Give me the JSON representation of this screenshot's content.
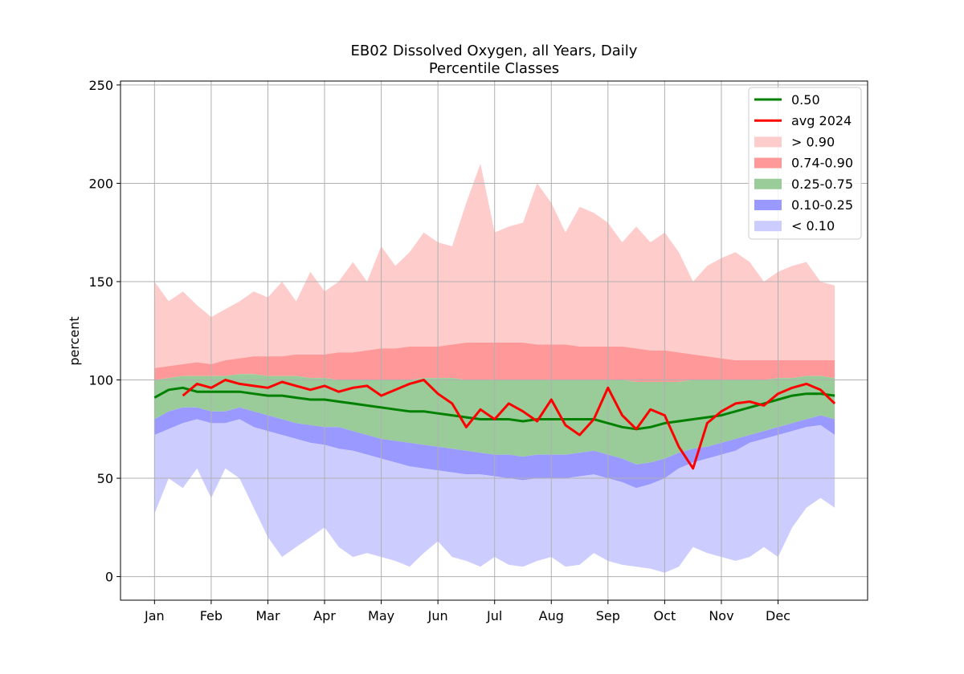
{
  "chart_data": {
    "type": "area",
    "title": "EB02 Dissolved Oxygen, all Years, Daily",
    "subtitle": "Percentile Classes",
    "ylabel": "percent",
    "xlabel": "",
    "ylim": [
      -12,
      252
    ],
    "xlim": [
      -60,
      1258
    ],
    "grid": true,
    "legend_position": "top-right",
    "x_ticks": [
      {
        "label": "Jan",
        "day": 0
      },
      {
        "label": "Feb",
        "day": 100
      },
      {
        "label": "Mar",
        "day": 200
      },
      {
        "label": "Apr",
        "day": 300
      },
      {
        "label": "May",
        "day": 400
      },
      {
        "label": "Jun",
        "day": 500
      },
      {
        "label": "Jul",
        "day": 600
      },
      {
        "label": "Aug",
        "day": 700
      },
      {
        "label": "Sep",
        "day": 800
      },
      {
        "label": "Oct",
        "day": 900
      },
      {
        "label": "Nov",
        "day": 1000
      },
      {
        "label": "Dec",
        "day": 1100
      }
    ],
    "y_ticks": [
      0,
      50,
      100,
      150,
      200,
      250
    ],
    "x": [
      0,
      25,
      50,
      75,
      100,
      125,
      150,
      175,
      200,
      225,
      250,
      275,
      300,
      325,
      350,
      375,
      400,
      425,
      450,
      475,
      500,
      525,
      550,
      575,
      600,
      625,
      650,
      675,
      700,
      725,
      750,
      775,
      800,
      825,
      850,
      875,
      900,
      925,
      950,
      975,
      1000,
      1025,
      1050,
      1075,
      1100,
      1125,
      1150,
      1175,
      1200
    ],
    "bands": {
      "p00": [
        32,
        50,
        45,
        55,
        40,
        55,
        50,
        35,
        20,
        10,
        15,
        20,
        25,
        15,
        10,
        12,
        10,
        8,
        5,
        12,
        18,
        10,
        8,
        5,
        10,
        6,
        5,
        8,
        10,
        5,
        6,
        12,
        8,
        6,
        5,
        4,
        2,
        5,
        15,
        12,
        10,
        8,
        10,
        15,
        10,
        25,
        35,
        40,
        35
      ],
      "p10": [
        72,
        75,
        78,
        80,
        78,
        78,
        80,
        76,
        74,
        72,
        70,
        68,
        67,
        65,
        64,
        62,
        60,
        58,
        56,
        55,
        54,
        53,
        52,
        52,
        51,
        50,
        49,
        50,
        50,
        50,
        51,
        52,
        50,
        48,
        45,
        47,
        50,
        55,
        58,
        60,
        62,
        64,
        68,
        70,
        72,
        74,
        76,
        77,
        72
      ],
      "p25": [
        80,
        84,
        86,
        86,
        84,
        84,
        86,
        84,
        82,
        80,
        78,
        77,
        76,
        76,
        74,
        72,
        70,
        69,
        68,
        67,
        66,
        65,
        64,
        63,
        62,
        62,
        61,
        62,
        62,
        62,
        63,
        64,
        62,
        60,
        57,
        58,
        60,
        63,
        65,
        66,
        68,
        70,
        72,
        74,
        76,
        78,
        80,
        82,
        80
      ],
      "p50": [
        91,
        95,
        96,
        94,
        94,
        94,
        94,
        93,
        92,
        92,
        91,
        90,
        90,
        89,
        88,
        87,
        86,
        85,
        84,
        84,
        83,
        82,
        81,
        80,
        80,
        80,
        79,
        80,
        80,
        80,
        80,
        80,
        78,
        76,
        75,
        76,
        78,
        79,
        80,
        81,
        82,
        84,
        86,
        88,
        90,
        92,
        93,
        93,
        92
      ],
      "p75": [
        100,
        101,
        102,
        102,
        102,
        102,
        103,
        103,
        102,
        102,
        102,
        101,
        101,
        100,
        100,
        100,
        100,
        100,
        100,
        101,
        101,
        101,
        100,
        100,
        100,
        100,
        100,
        100,
        100,
        100,
        100,
        100,
        100,
        100,
        99,
        99,
        99,
        99,
        100,
        100,
        100,
        100,
        100,
        100,
        101,
        101,
        102,
        102,
        101
      ],
      "p90": [
        106,
        107,
        108,
        109,
        108,
        110,
        111,
        112,
        112,
        112,
        113,
        113,
        113,
        114,
        114,
        115,
        116,
        116,
        117,
        117,
        117,
        118,
        119,
        119,
        119,
        119,
        119,
        118,
        118,
        118,
        117,
        117,
        117,
        117,
        116,
        115,
        115,
        114,
        113,
        112,
        111,
        110,
        110,
        110,
        110,
        110,
        110,
        110,
        110
      ],
      "p100": [
        150,
        140,
        145,
        138,
        132,
        136,
        140,
        145,
        142,
        150,
        140,
        155,
        145,
        150,
        160,
        150,
        168,
        158,
        165,
        175,
        170,
        168,
        190,
        210,
        175,
        178,
        180,
        200,
        190,
        175,
        188,
        185,
        180,
        170,
        178,
        170,
        175,
        165,
        150,
        158,
        162,
        165,
        160,
        150,
        155,
        158,
        160,
        150,
        148
      ]
    },
    "series": [
      {
        "name": "0.50",
        "color": "#008000",
        "values": [
          91,
          95,
          96,
          94,
          94,
          94,
          94,
          93,
          92,
          92,
          91,
          90,
          90,
          89,
          88,
          87,
          86,
          85,
          84,
          84,
          83,
          82,
          81,
          80,
          80,
          80,
          79,
          80,
          80,
          80,
          80,
          80,
          78,
          76,
          75,
          76,
          78,
          79,
          80,
          81,
          82,
          84,
          86,
          88,
          90,
          92,
          93,
          93,
          92
        ]
      },
      {
        "name": "avg 2024",
        "color": "#ff0000",
        "values": [
          null,
          null,
          92,
          98,
          96,
          100,
          98,
          97,
          96,
          99,
          97,
          95,
          97,
          94,
          96,
          97,
          92,
          95,
          98,
          100,
          93,
          88,
          76,
          85,
          80,
          88,
          84,
          79,
          90,
          77,
          72,
          80,
          96,
          82,
          75,
          85,
          82,
          66,
          55,
          78,
          84,
          88,
          89,
          87,
          93,
          96,
          98,
          95,
          88
        ]
      }
    ],
    "legend": [
      {
        "label": "0.50",
        "kind": "line",
        "color": "#008000"
      },
      {
        "label": "avg 2024",
        "kind": "line",
        "color": "#ff0000"
      },
      {
        "label": "> 0.90",
        "kind": "patch",
        "color": "#ffcccc"
      },
      {
        "label": "0.74-0.90",
        "kind": "patch",
        "color": "#ff9999"
      },
      {
        "label": "0.25-0.75",
        "kind": "patch",
        "color": "#99cc99"
      },
      {
        "label": "0.10-0.25",
        "kind": "patch",
        "color": "#9999ff"
      },
      {
        "label": "< 0.10",
        "kind": "patch",
        "color": "#ccccff"
      }
    ]
  }
}
